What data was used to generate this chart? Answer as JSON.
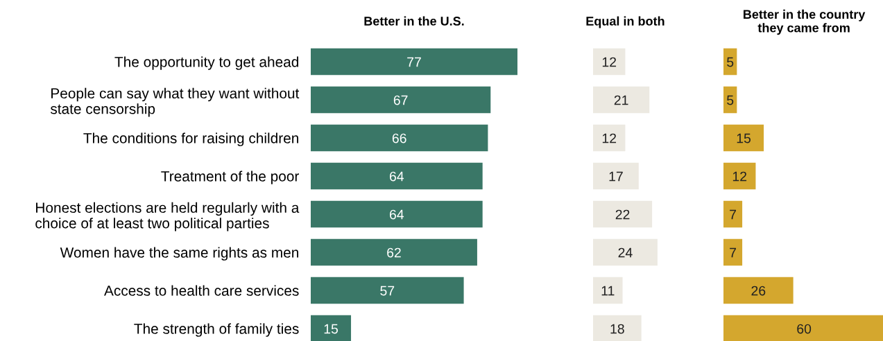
{
  "chart_data": [
    {
      "type": "bar",
      "orientation": "horizontal",
      "title": "Better in the U.S.",
      "categories": [
        "The opportunity to get ahead",
        "People can say what they want without\nstate censorship",
        "The conditions for raising children",
        "Treatment of the poor",
        "Honest elections are held regularly with a\nchoice of at least two political parties",
        "Women have the same rights as men",
        "Access to health care services",
        "The strength of family ties"
      ],
      "values": [
        77,
        67,
        66,
        64,
        64,
        62,
        57,
        15
      ],
      "color": "#3a7767",
      "data_labels": true,
      "tick_labels": "y"
    },
    {
      "type": "bar",
      "orientation": "horizontal",
      "title": "Equal in both",
      "categories": [
        null,
        null,
        null,
        null,
        null,
        null,
        null,
        null
      ],
      "values": [
        12,
        21,
        12,
        17,
        22,
        24,
        11,
        18
      ],
      "color": "#ece9e1",
      "data_labels": true,
      "tick_labels": false
    },
    {
      "type": "bar",
      "orientation": "horizontal",
      "title": "Better in the country\nthey came from",
      "categories": [
        null,
        null,
        null,
        null,
        null,
        null,
        null,
        null
      ],
      "values": [
        5,
        5,
        15,
        12,
        7,
        7,
        26,
        60
      ],
      "color": "#d4a72e",
      "data_labels": true,
      "tick_labels": false
    }
  ]
}
